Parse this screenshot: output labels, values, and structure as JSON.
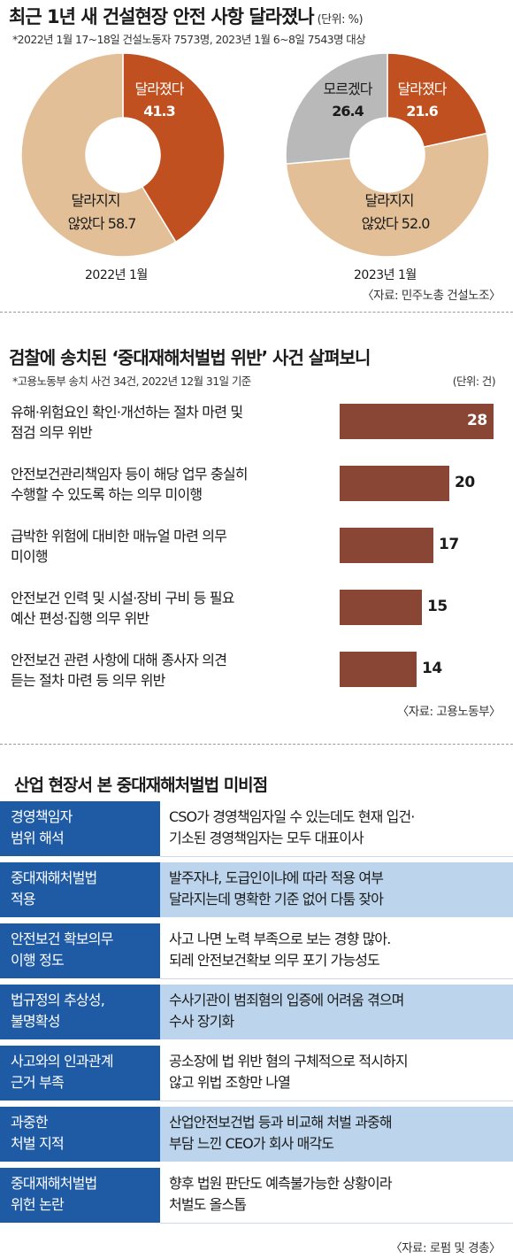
{
  "section1": {
    "title": "최근 1년 새 건설현장 안전 사항 달라졌나",
    "unit": "(단위: %)",
    "note": "*2022년 1월 17~18일 건설노동자 7573명, 2023년 1월 6~8일 7543명 대상",
    "source": "〈자료: 민주노총 건설노조〉",
    "colors": {
      "changed": "#c0501f",
      "unchanged": "#e2bf97",
      "unknown": "#b9b9b9"
    }
  },
  "section2": {
    "title": "검찰에 송치된 ‘중대재해처벌법 위반’ 사건 살펴보니",
    "note": "*고용노동부 송치 사건 34건, 2022년 12월 31일 기준",
    "unit": "(단위: 건)",
    "source": "〈자료: 고용노동부〉",
    "bar_color": "#8a4634"
  },
  "chart_data": [
    {
      "type": "pie",
      "caption": "2022년 1월",
      "slices": [
        {
          "label": "달라졌다",
          "value": 41.3
        },
        {
          "label_line1": "달라지지",
          "label_line2": "않았다",
          "value": 58.7
        }
      ]
    },
    {
      "type": "pie",
      "caption": "2023년 1월",
      "slices": [
        {
          "label": "달라졌다",
          "value": 21.6
        },
        {
          "label_line1": "달라지지",
          "label_line2": "않았다",
          "value": 52.0
        },
        {
          "label": "모르겠다",
          "value": 26.4
        }
      ]
    },
    {
      "type": "bar",
      "orientation": "horizontal",
      "categories": [
        [
          "유해·위험요인 확인·개선하는 절차 마련 및",
          "점검 의무 위반"
        ],
        [
          "안전보건관리책임자 등이 해당 업무 충실히",
          "수행할 수 있도록 하는 의무 미이행"
        ],
        [
          "급박한 위험에 대비한 매뉴얼 마련 의무",
          "미이행"
        ],
        [
          "안전보건 인력 및 시설·장비 구비 등 필요",
          "예산 편성·집행 의무 위반"
        ],
        [
          "안전보건 관련 사항에 대해 종사자 의견",
          "듣는 절차 마련 등 의무 위반"
        ]
      ],
      "values": [
        28,
        20,
        17,
        15,
        14
      ]
    }
  ],
  "section3": {
    "title": "산업 현장서 본 중대재해처벌법 미비점",
    "source": "〈자료: 로펌 및 경총〉",
    "colors": {
      "key_bg": "#1f5ba5",
      "alt_bg": "#bcd5ec"
    },
    "rows": [
      {
        "key1": "경영책임자",
        "key2": "범위 해석",
        "val1": "CSO가 경영책임자일 수 있는데도 현재 입건·",
        "val2": "기소된 경영책임자는 모두 대표이사"
      },
      {
        "key1": "중대재해처벌법",
        "key2": "적용",
        "val1": "발주자냐, 도급인이냐에 따라 적용 여부",
        "val2": "달라지는데 명확한 기준 없어 다툼 잦아"
      },
      {
        "key1": "안전보건 확보의무",
        "key2": "이행 정도",
        "val1": "사고 나면 노력 부족으로 보는 경향 많아.",
        "val2": "되레 안전보건확보 의무 포기 가능성도"
      },
      {
        "key1": "법규정의 추상성,",
        "key2": "불명확성",
        "val1": "수사기관이 범죄혐의 입증에 어려움 겪으며",
        "val2": "수사 장기화"
      },
      {
        "key1": "사고와의 인과관계",
        "key2": "근거 부족",
        "val1": "공소장에 법 위반 혐의 구체적으로 적시하지",
        "val2": "않고 위법 조항만 나열"
      },
      {
        "key1": "과중한",
        "key2": "처벌 지적",
        "val1": "산업안전보건법 등과 비교해 처벌 과중해",
        "val2": "부담 느낀 CEO가 회사 매각도"
      },
      {
        "key1": "중대재해처벌법",
        "key2": "위헌 논란",
        "val1": "향후 법원 판단도 예측불가능한 상황이라",
        "val2": "처벌도 올스톱"
      }
    ]
  }
}
